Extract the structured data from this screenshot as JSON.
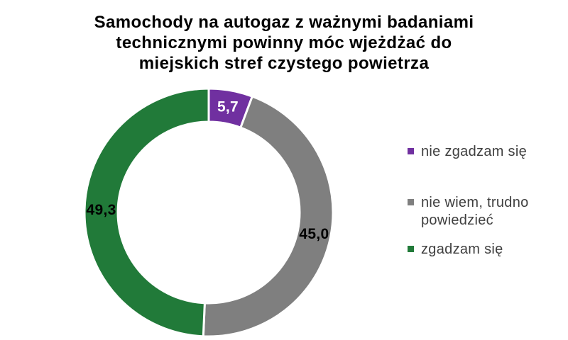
{
  "title": {
    "lines": [
      "Samochody na autogaz z ważnymi badaniami",
      "technicznymi powinny móc wjeżdżać do",
      "miejskich stref czystego powietrza"
    ]
  },
  "chart_data": {
    "type": "pie",
    "subtype": "donut",
    "title": "Samochody na autogaz z ważnymi badaniami technicznymi powinny móc wjeżdżać do miejskich stref czystego powietrza",
    "unit": "%",
    "start_angle_deg": 0,
    "direction": "clockwise",
    "hole_ratio": 0.73,
    "legend_position": "right",
    "segments": [
      {
        "label": "nie zgadzam się",
        "value": 5.7,
        "display": "5,7",
        "color": "#7030A0",
        "label_color": "#FFFFFF"
      },
      {
        "label": "nie wiem, trudno powiedzieć",
        "value": 45.0,
        "display": "45,0",
        "color": "#7F7F7F",
        "label_color": "#000000"
      },
      {
        "label": "zgadzam się",
        "value": 49.3,
        "display": "49,3",
        "color": "#217A39",
        "label_color": "#000000"
      }
    ],
    "colors": {
      "background": "#FFFFFF",
      "title_text": "#000000",
      "legend_text": "#3F3F3F",
      "slice_separator": "#FFFFFF"
    }
  }
}
